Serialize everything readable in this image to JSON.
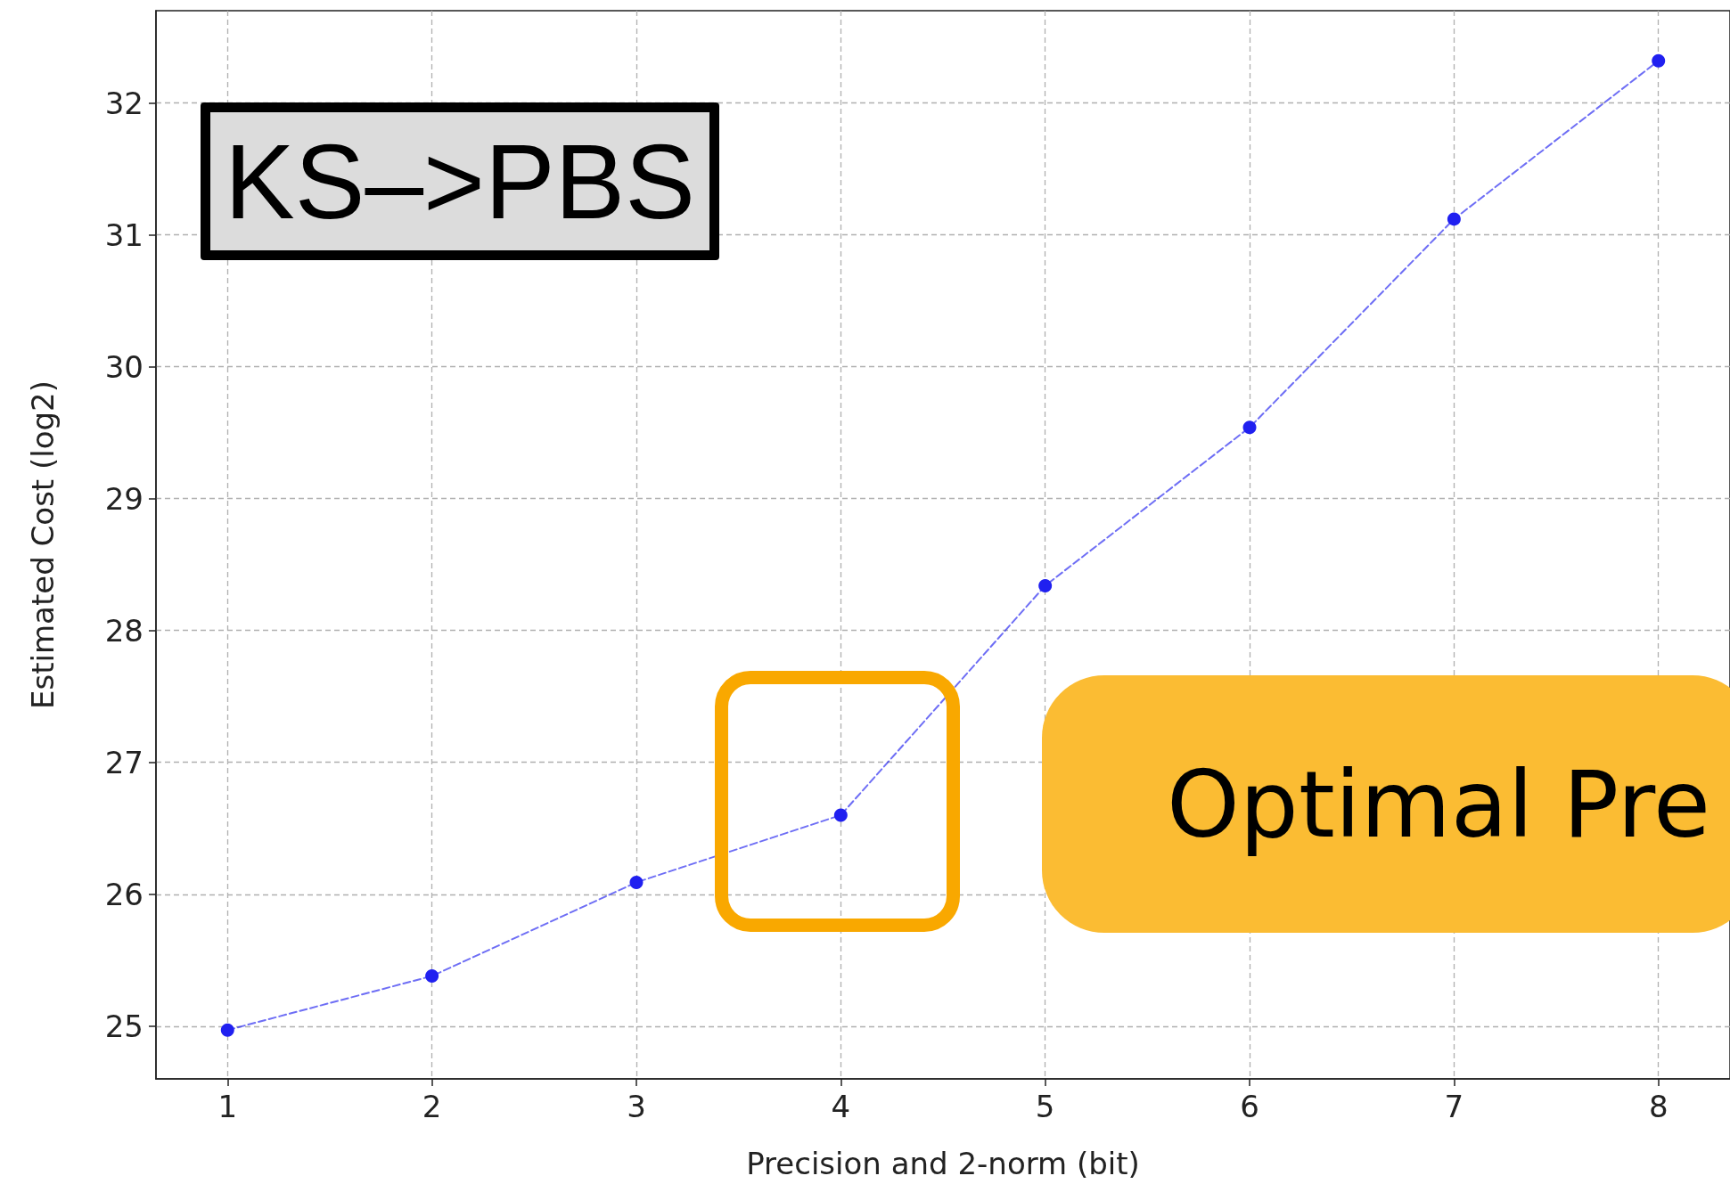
{
  "chart_data": {
    "type": "line",
    "xlabel": "Precision and 2-norm (bit)",
    "ylabel": "Estimated Cost (log2)",
    "annotations": [
      "KS–>PBS",
      "Optimal Pre"
    ],
    "x": [
      1,
      2,
      3,
      4,
      5,
      6,
      7,
      8
    ],
    "values": [
      24.97,
      25.38,
      26.09,
      26.6,
      28.34,
      29.54,
      31.12,
      32.32
    ],
    "color": "#2020f0",
    "xlim": [
      0.65,
      8.35
    ],
    "ylim": [
      24.6,
      32.7
    ],
    "xticks": [
      1,
      2,
      3,
      4,
      5,
      6,
      7,
      8
    ],
    "yticks": [
      25,
      26,
      27,
      28,
      29,
      30,
      31,
      32
    ],
    "grid": true,
    "marker": "circle",
    "line_style": "dashed"
  }
}
